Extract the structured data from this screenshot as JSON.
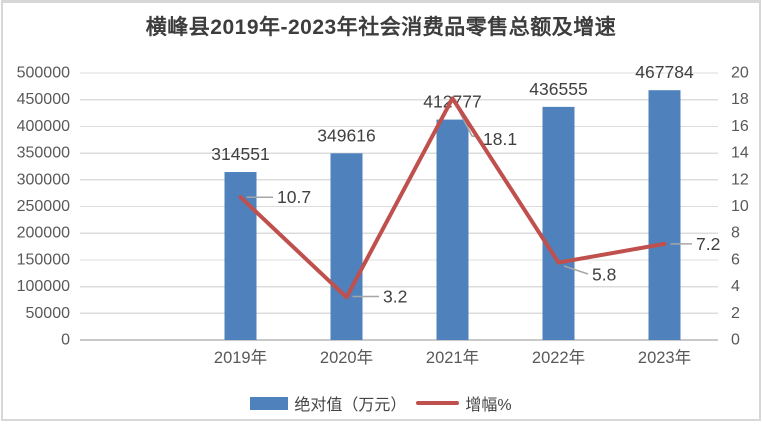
{
  "page": {
    "background": "#ffffff",
    "frame_border_color": "#d7d7d7"
  },
  "chart_data": {
    "type": "bar",
    "title": "横峰县2019年-2023年社会消费品零售总额及增速",
    "categories": [
      "2019年",
      "2020年",
      "2021年",
      "2022年",
      "2023年"
    ],
    "series": [
      {
        "name": "绝对值（万元）",
        "type": "bar",
        "axis": "left",
        "color": "#4F81BD",
        "values": [
          314551,
          349616,
          412777,
          436555,
          467784
        ]
      },
      {
        "name": "增幅%",
        "type": "line",
        "axis": "right",
        "color": "#C0504D",
        "values": [
          10.7,
          3.2,
          18.1,
          5.8,
          7.2
        ]
      }
    ],
    "left_axis": {
      "min": 0,
      "max": 500000,
      "step": 50000,
      "tick_labels": [
        "0",
        "50000",
        "100000",
        "150000",
        "200000",
        "250000",
        "300000",
        "350000",
        "400000",
        "450000",
        "500000"
      ]
    },
    "right_axis": {
      "min": 0,
      "max": 20,
      "step": 2,
      "tick_labels": [
        "0",
        "2",
        "4",
        "6",
        "8",
        "10",
        "12",
        "14",
        "16",
        "18",
        "20"
      ]
    },
    "grid": true,
    "legend_position": "bottom",
    "colors": {
      "grid_line": "#dcdcdc",
      "axis_line": "#c9c9c9",
      "leader_line": "#a6a6a6",
      "tick_text": "#595959",
      "data_label_text": "#404040",
      "title_text": "#3d3d3d"
    }
  }
}
